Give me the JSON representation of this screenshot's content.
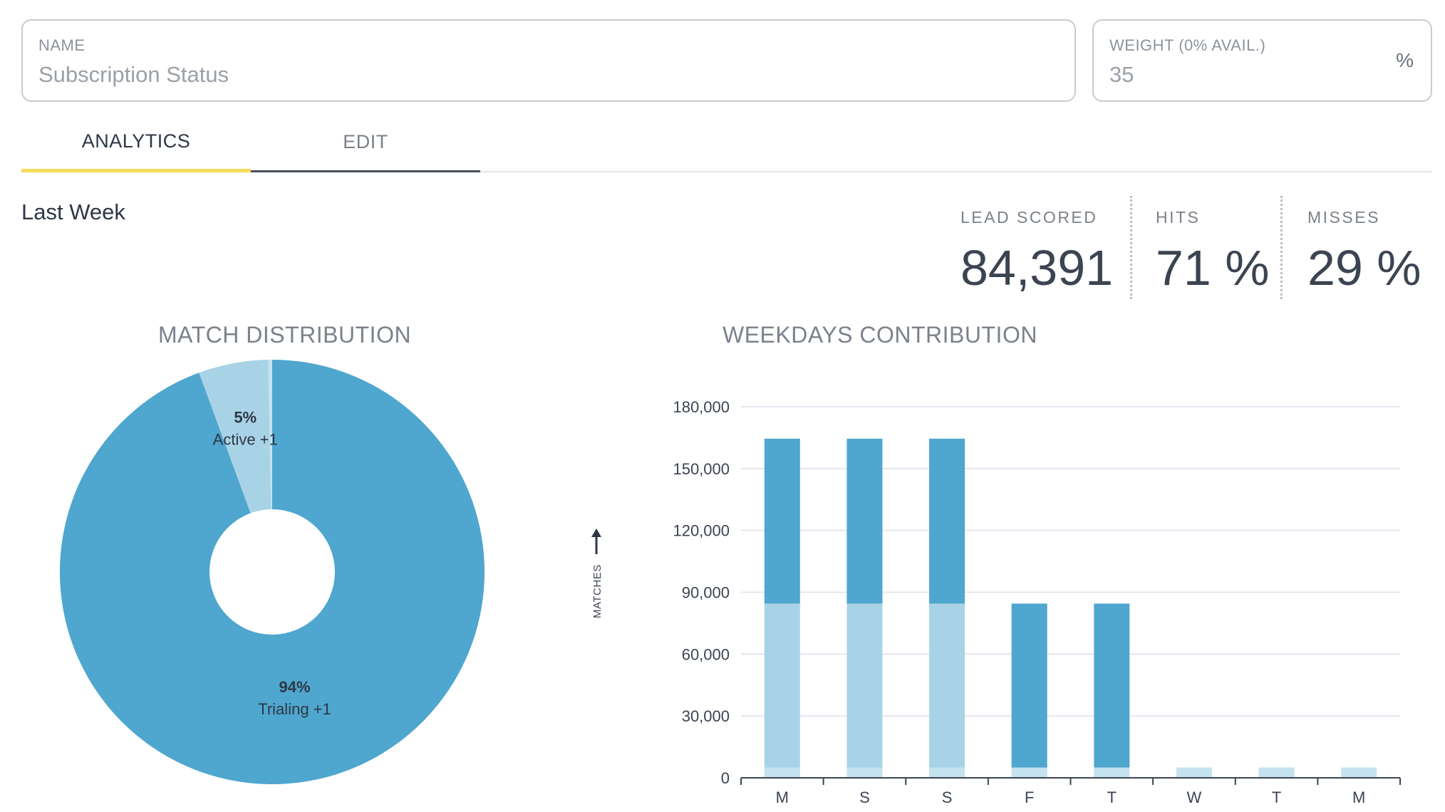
{
  "form": {
    "name_label": "NAME",
    "name_value": "Subscription Status",
    "weight_label": "WEIGHT (0% AVAIL.)",
    "weight_value": "35",
    "weight_suffix": "%"
  },
  "tabs": [
    {
      "label": "ANALYTICS",
      "active": true
    },
    {
      "label": "EDIT",
      "active": false
    }
  ],
  "period": "Last Week",
  "stats": {
    "lead_scored_label": "LEAD SCORED",
    "lead_scored_value": "84,391",
    "hits_label": "HITS",
    "hits_value": "71 %",
    "misses_label": "MISSES",
    "misses_value": "29 %"
  },
  "colors": {
    "primary": "#4fa6ce",
    "secondary": "#a8d3e6",
    "tertiary": "#c4e2ef",
    "tab_accent": "#f5dc5a"
  },
  "chart_data": [
    {
      "type": "pie",
      "title": "MATCH DISTRIBUTION",
      "donut": true,
      "slices": [
        {
          "label": "Trialing +1",
          "percent_label": "94%",
          "value": 94.4,
          "color": "#4fa6ce"
        },
        {
          "label": "Active +1",
          "percent_label": "5%",
          "value": 5.3,
          "color": "#a8d3e6"
        },
        {
          "label": "",
          "percent_label": "",
          "value": 0.3,
          "color": "#c4e2ef"
        }
      ]
    },
    {
      "type": "bar",
      "stacked": true,
      "title": "WEEKDAYS CONTRIBUTION",
      "ylabel": "MATCHES",
      "categories": [
        "M",
        "S",
        "S",
        "F",
        "T",
        "W",
        "T",
        "M"
      ],
      "ylim": [
        0,
        180000
      ],
      "yticks": [
        "0",
        "30,000",
        "60,000",
        "90,000",
        "120,000",
        "150,000",
        "180,000"
      ],
      "series": [
        {
          "values": [
            5000,
            5000,
            5000,
            5000,
            5000,
            5000,
            5000,
            5000
          ],
          "color": "#c4e2ef"
        },
        {
          "values": [
            79500,
            79500,
            79500,
            0,
            0,
            0,
            0,
            0
          ],
          "color": "#a8d3e6"
        },
        {
          "values": [
            80000,
            80000,
            80000,
            79500,
            79500,
            0,
            0,
            0
          ],
          "color": "#4fa6ce"
        }
      ],
      "grid": true
    }
  ]
}
